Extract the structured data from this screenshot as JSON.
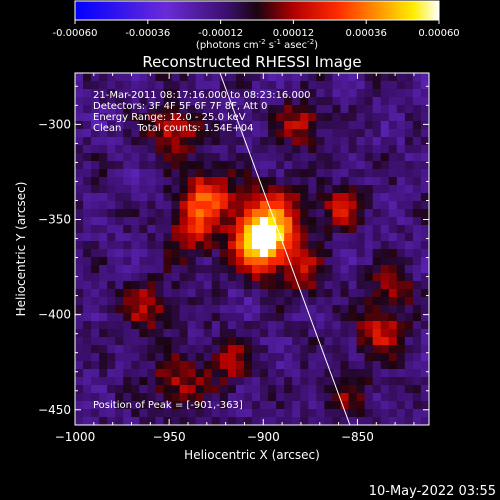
{
  "chart_data": {
    "type": "heatmap",
    "title": "Reconstructed RHESSI Image",
    "xlabel": "Heliocentric X (arcsec)",
    "ylabel": "Heliocentric Y (arcsec)",
    "xlim": [
      -1000,
      -812
    ],
    "ylim": [
      -458,
      -273
    ],
    "xticks": [
      -1000,
      -950,
      -900,
      -850
    ],
    "yticks": [
      -300,
      -350,
      -400,
      -450
    ],
    "colorbar": {
      "range": [
        -0.0006,
        0.0006
      ],
      "ticks": [
        "-0.00060",
        "-0.00036",
        "-0.00012",
        "0.00012",
        "0.00036",
        "0.00060"
      ],
      "unit_label": "(photons cm",
      "unit_sup1": "-2",
      "unit_mid": " s",
      "unit_sup2": "-1",
      "unit_mid2": " asec",
      "unit_sup3": "-2",
      "unit_end": ")",
      "colormap": "blue-purple-red-orange-yellow-white"
    },
    "annotations": [
      "21-Mar-2011 08:17:16.000 to 08:23:16.000",
      "Detectors: 3F 4F 5F 6F 7F 8F, Att 0",
      "Energy Range: 12.0 - 25.0 keV",
      "Clean     Total counts: 1.54E+04"
    ],
    "peak_label": "Position of Peak = [-901,-363]",
    "peak": [
      -901,
      -363
    ],
    "limb_line": {
      "x": [
        -923,
        -854
      ],
      "y": [
        -273,
        -458
      ]
    },
    "sources": [
      {
        "x": -901,
        "y": -363,
        "amp": 1.0,
        "sigma": 10
      },
      {
        "x": -895,
        "y": -348,
        "amp": 0.55,
        "sigma": 12
      },
      {
        "x": -930,
        "y": -338,
        "amp": 0.6,
        "sigma": 10
      },
      {
        "x": -948,
        "y": -303,
        "amp": 0.45,
        "sigma": 9
      },
      {
        "x": -938,
        "y": -358,
        "amp": 0.4,
        "sigma": 9
      },
      {
        "x": -962,
        "y": -395,
        "amp": 0.35,
        "sigma": 10
      },
      {
        "x": -945,
        "y": -435,
        "amp": 0.35,
        "sigma": 10
      },
      {
        "x": -918,
        "y": -425,
        "amp": 0.3,
        "sigma": 9
      },
      {
        "x": -880,
        "y": -300,
        "amp": 0.4,
        "sigma": 8
      },
      {
        "x": -858,
        "y": -343,
        "amp": 0.4,
        "sigma": 8
      },
      {
        "x": -878,
        "y": -378,
        "amp": 0.35,
        "sigma": 8
      },
      {
        "x": -838,
        "y": -408,
        "amp": 0.45,
        "sigma": 9
      },
      {
        "x": -832,
        "y": -385,
        "amp": 0.3,
        "sigma": 8
      },
      {
        "x": -855,
        "y": -440,
        "amp": 0.25,
        "sigma": 9
      }
    ]
  },
  "footer": {
    "timestamp": "10-May-2022 03:55"
  }
}
